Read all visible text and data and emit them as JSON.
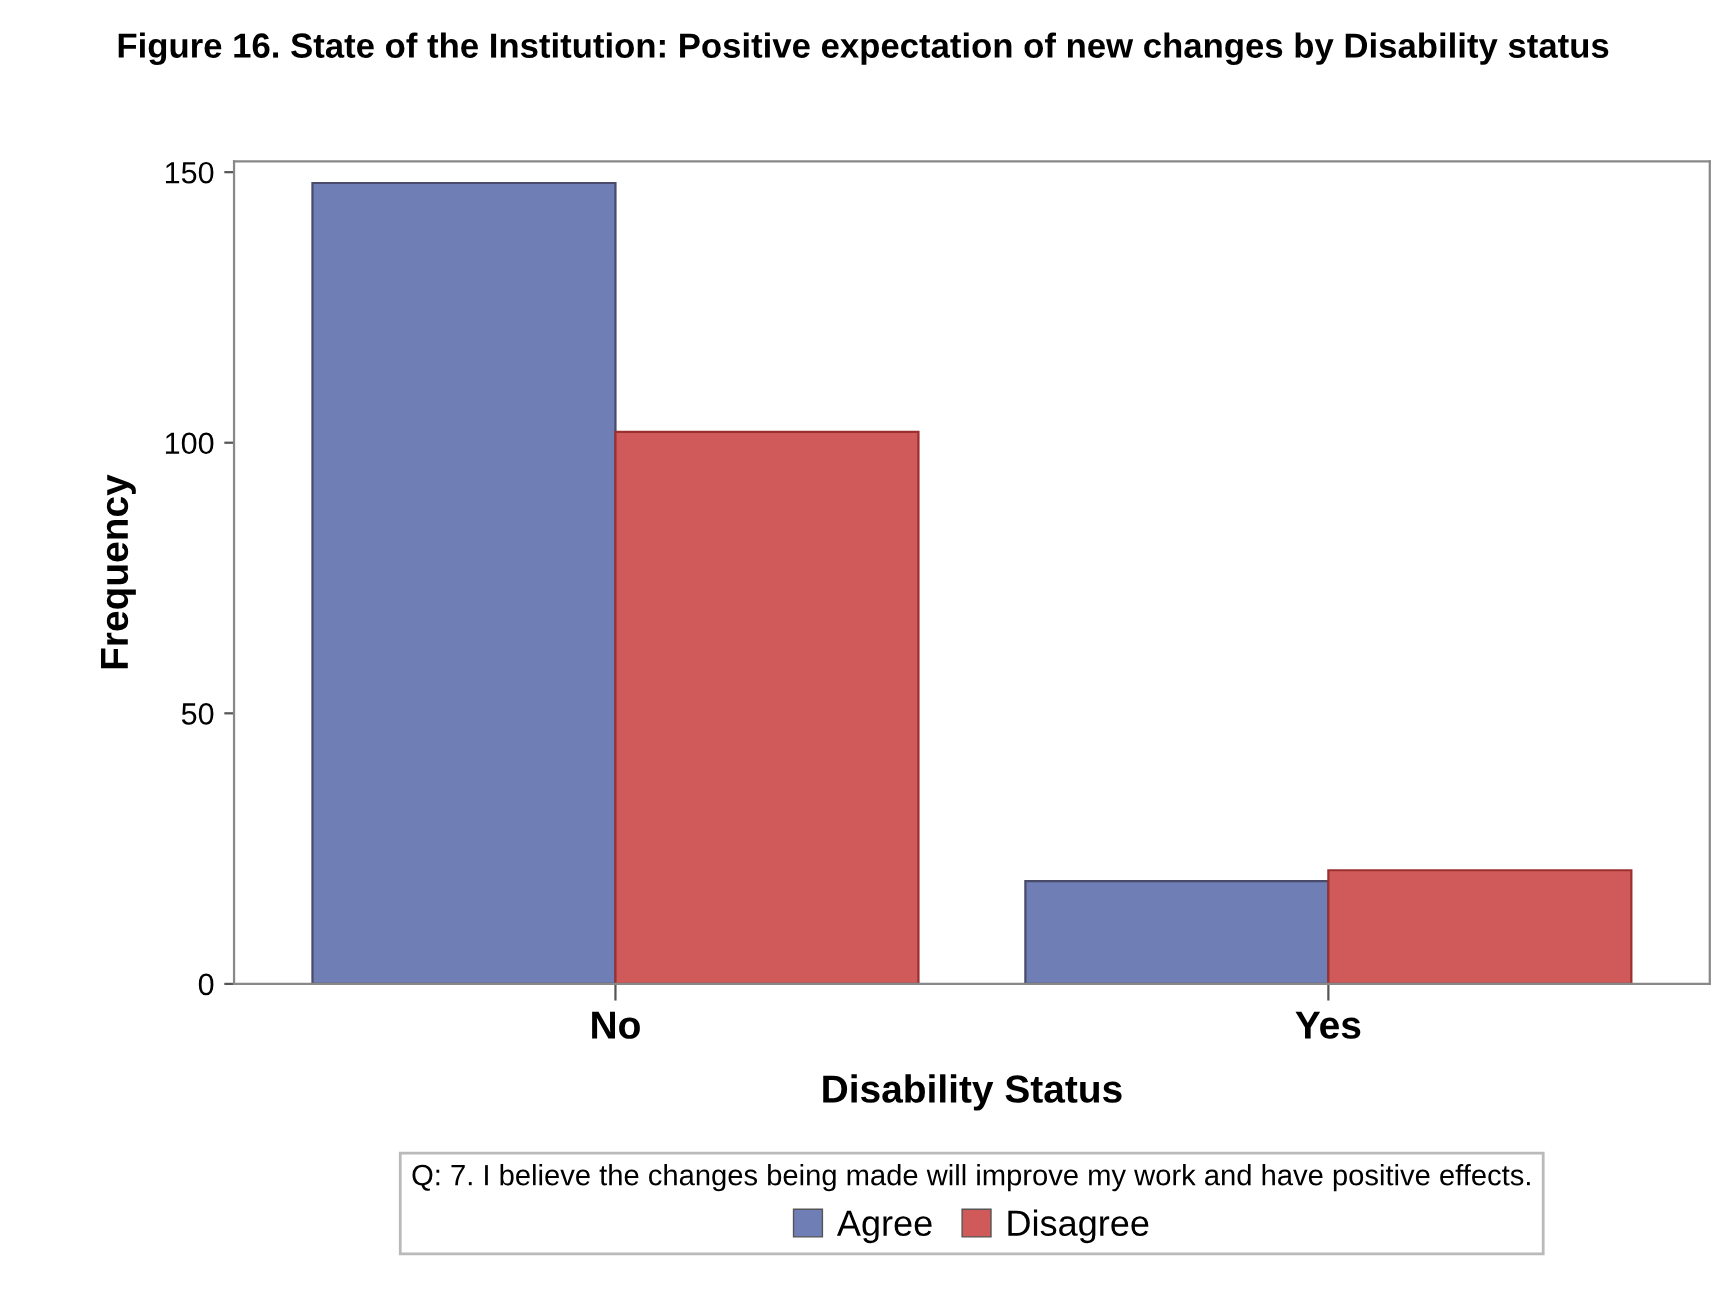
{
  "chart_data": {
    "type": "bar",
    "title": "Figure 16. State of the Institution: Positive expectation of new changes by Disability status",
    "xlabel": "Disability Status",
    "ylabel": "Frequency",
    "legend_title": "Q: 7. I believe the changes being made will improve my work and have positive effects.",
    "categories": [
      "No",
      "Yes"
    ],
    "series": [
      {
        "name": "Agree",
        "color": "#6f7fb5",
        "values": [
          148,
          19
        ]
      },
      {
        "name": "Disagree",
        "color": "#d05a5a",
        "values": [
          102,
          21
        ]
      }
    ],
    "ylim": [
      0,
      152
    ],
    "yticks": [
      0,
      50,
      100,
      150
    ],
    "grid": false,
    "legend": "bottom"
  }
}
